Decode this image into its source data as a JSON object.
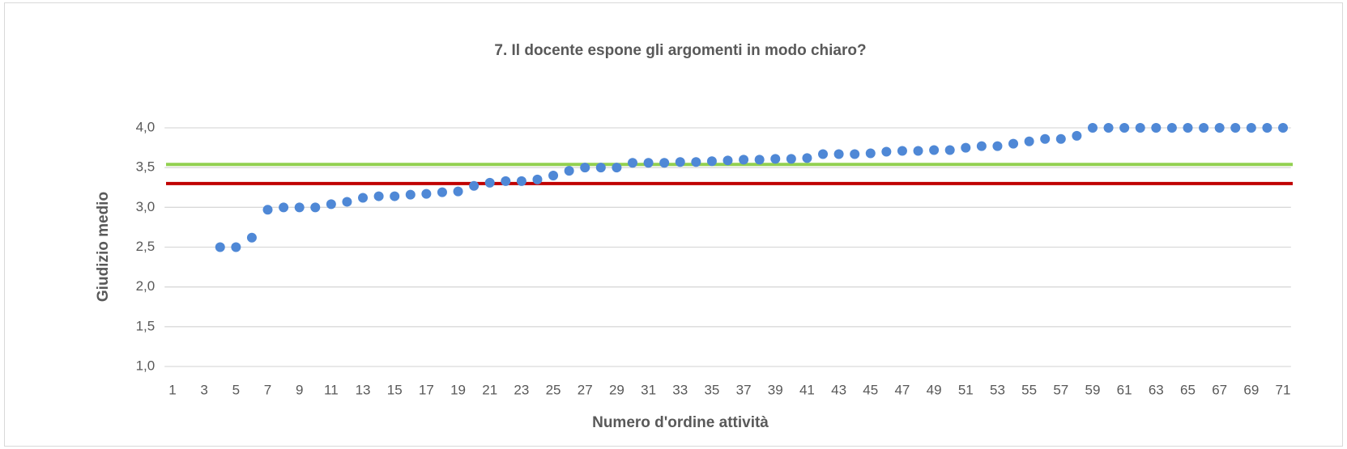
{
  "chart_data": {
    "type": "dot",
    "title": "7. Il docente espone gli argomenti in modo chiaro?",
    "x_label": "Numero d'ordine attività",
    "y_label": "Giudizio medio",
    "categories": [
      "1",
      null,
      "3",
      null,
      "5",
      null,
      "7",
      null,
      "9",
      null,
      "11",
      null,
      "13",
      null,
      "15",
      null,
      "17",
      null,
      "19",
      null,
      "21",
      null,
      "23",
      null,
      "25",
      null,
      "27",
      null,
      "29",
      null,
      "31",
      null,
      "33",
      null,
      "35",
      null,
      "37",
      null,
      "39",
      null,
      "41",
      null,
      "43",
      null,
      "45",
      null,
      "47",
      null,
      "49",
      null,
      "51",
      null,
      "53",
      null,
      "55",
      null,
      "57",
      null,
      "59",
      null,
      "61",
      null,
      "63",
      null,
      "65",
      null,
      "67",
      null,
      "69",
      null,
      "71"
    ],
    "values": [
      null,
      null,
      null,
      2.5,
      2.5,
      2.62,
      2.97,
      3.0,
      3.0,
      3.0,
      3.04,
      3.07,
      3.12,
      3.14,
      3.14,
      3.16,
      3.17,
      3.19,
      3.2,
      3.27,
      3.31,
      3.33,
      3.33,
      3.35,
      3.4,
      3.46,
      3.5,
      3.5,
      3.5,
      3.56,
      3.56,
      3.56,
      3.57,
      3.57,
      3.58,
      3.59,
      3.6,
      3.6,
      3.61,
      3.61,
      3.62,
      3.67,
      3.67,
      3.67,
      3.68,
      3.7,
      3.71,
      3.71,
      3.72,
      3.72,
      3.75,
      3.77,
      3.77,
      3.8,
      3.83,
      3.86,
      3.86,
      3.9,
      4.0,
      4.0,
      4.0,
      4.0,
      4.0,
      4.0,
      4.0,
      4.0,
      4.0,
      4.0,
      4.0,
      4.0,
      4.0
    ],
    "color": "#4f88d6",
    "reference_lines": [
      {
        "value": 3.54,
        "color": "#92d050"
      },
      {
        "value": 3.3,
        "color": "#c00000"
      }
    ],
    "ylim": [
      1,
      4
    ],
    "yticks": [
      {
        "value": 1,
        "label": "1,0"
      },
      {
        "value": 1.5,
        "label": "1,5"
      },
      {
        "value": 2,
        "label": "2,0"
      },
      {
        "value": 2.5,
        "label": "2,5"
      },
      {
        "value": 3,
        "label": "3,0"
      },
      {
        "value": 3.5,
        "label": "3,5"
      },
      {
        "value": 4,
        "label": "4,0"
      }
    ],
    "grid": true
  }
}
